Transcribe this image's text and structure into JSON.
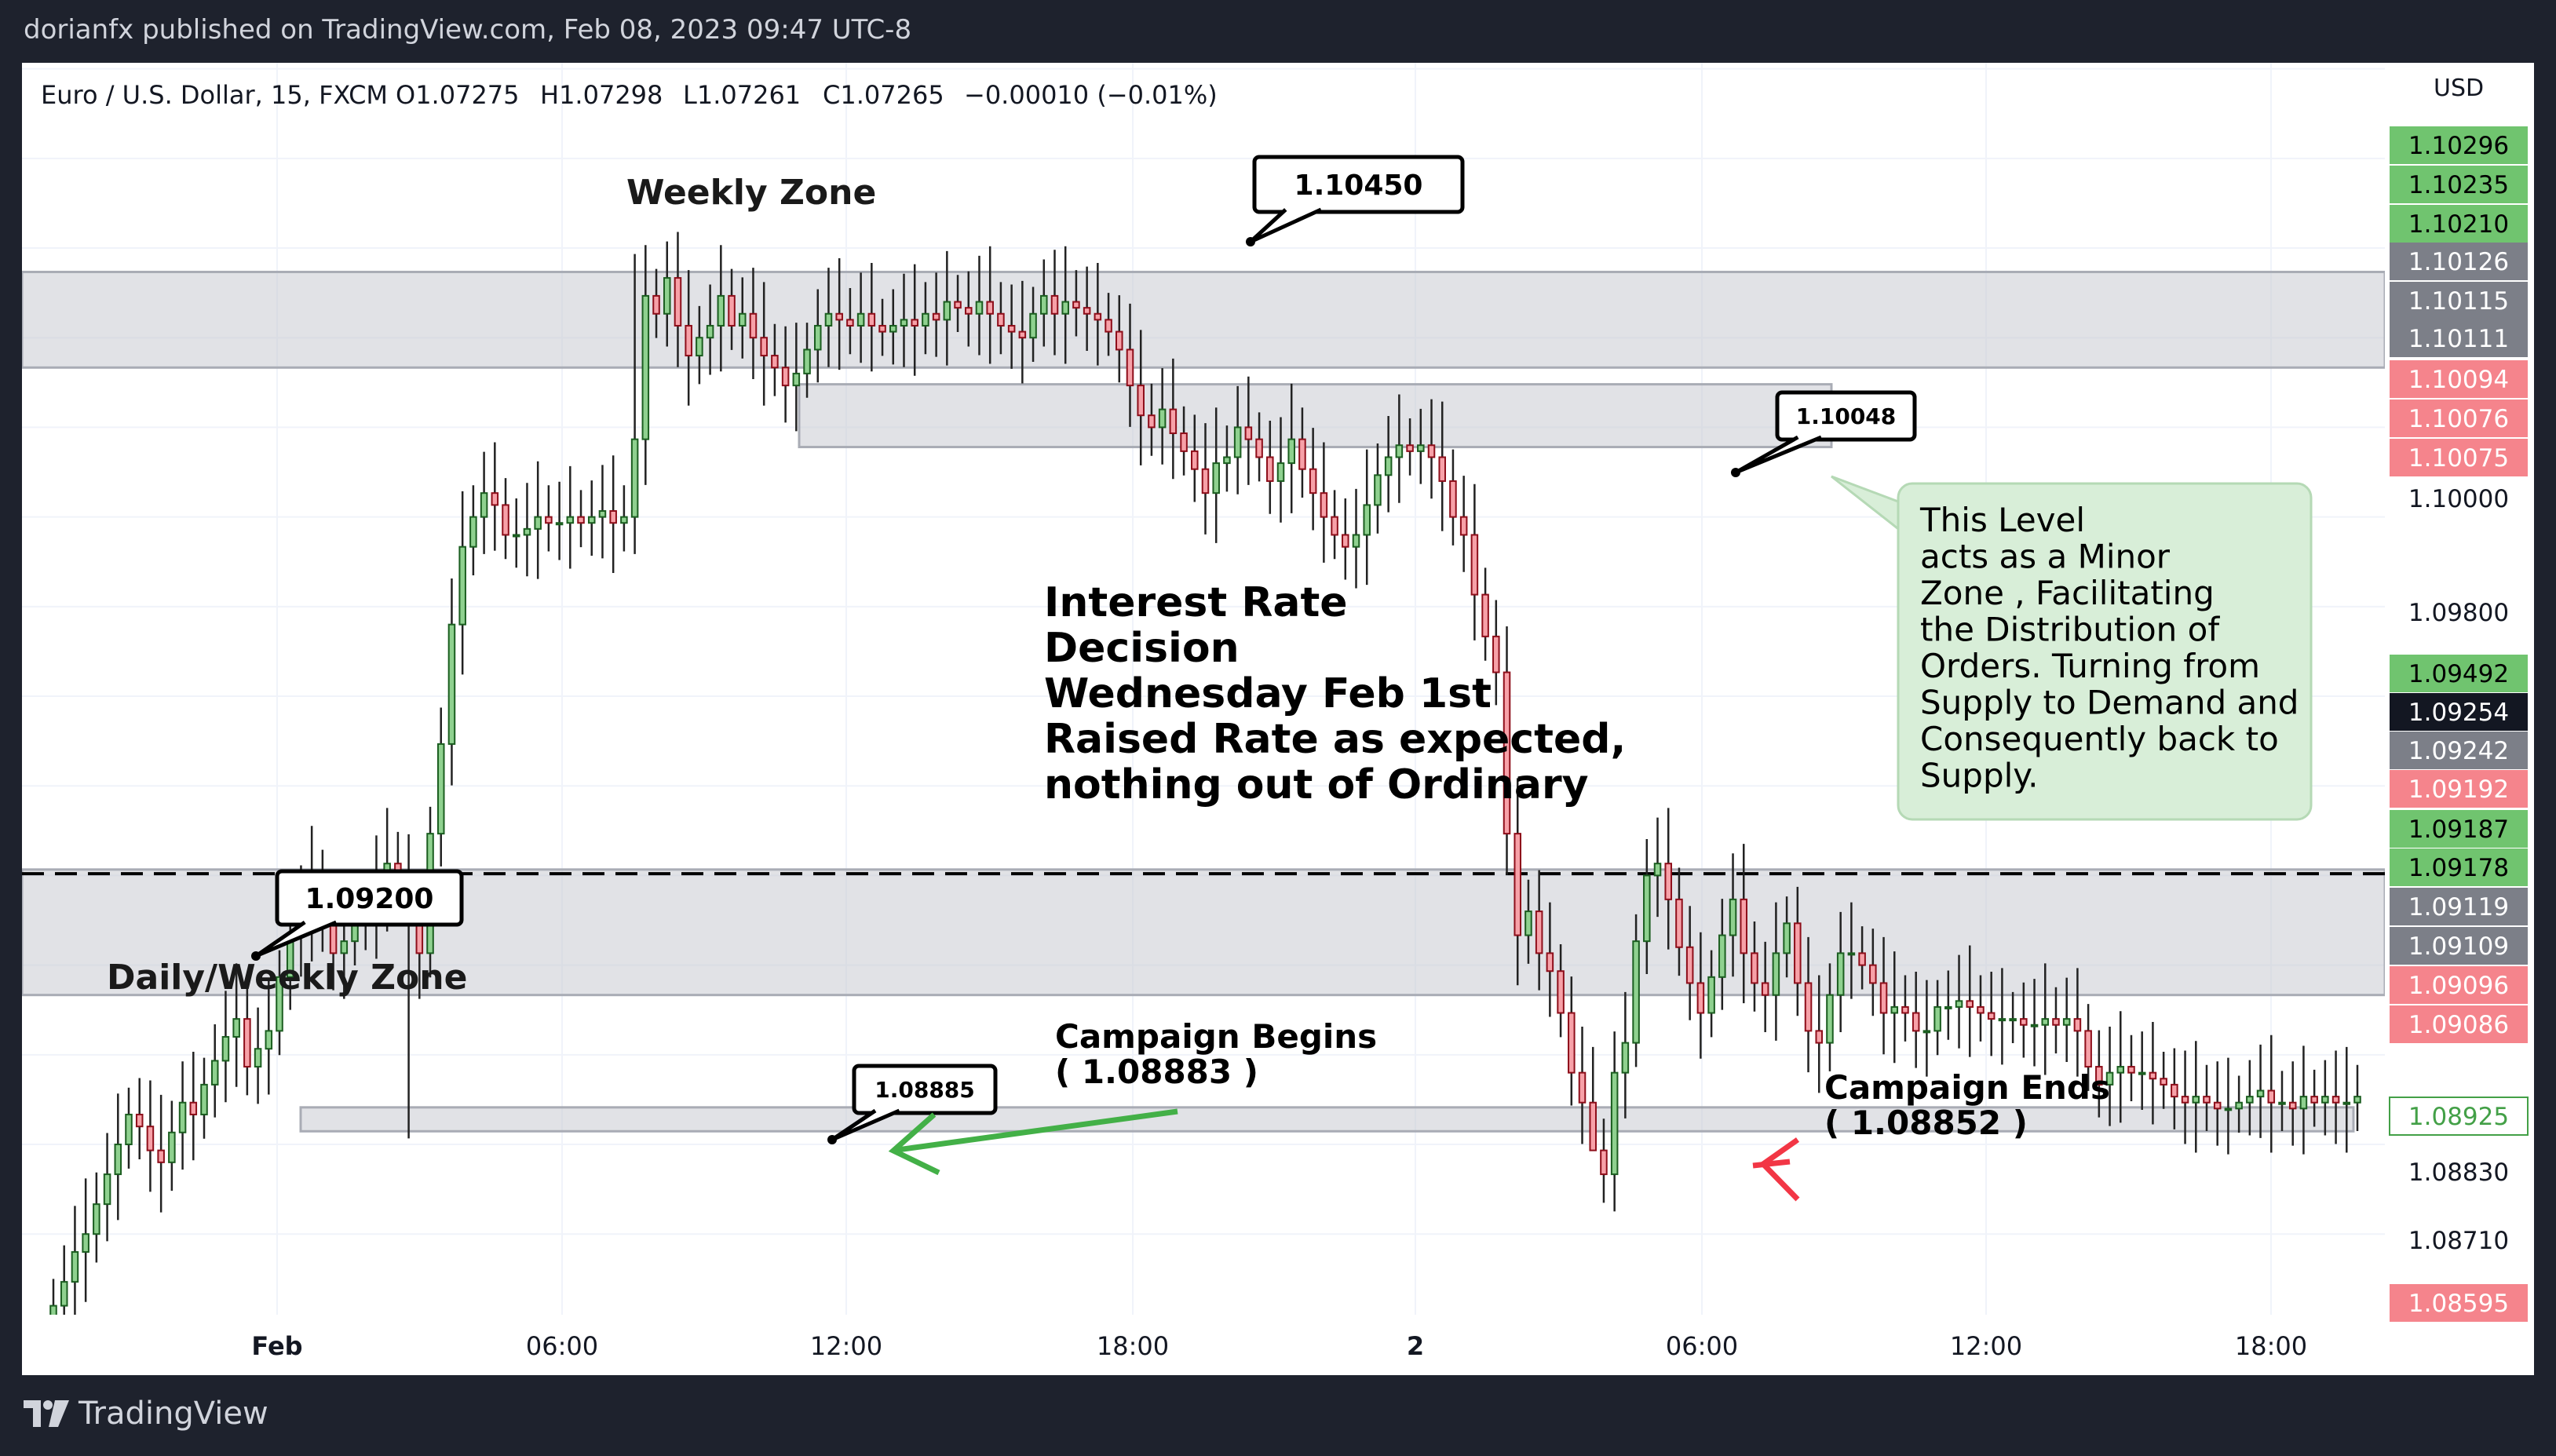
{
  "page": {
    "published": "dorianfx published on TradingView.com, Feb 08, 2023 09:47 UTC-8",
    "brand": "TradingView"
  },
  "chart_data": {
    "type": "candlestick",
    "title": "Euro / U.S. Dollar, 15, FXCM",
    "ohlc_legend": {
      "open": "O1.07275",
      "high": "H1.07298",
      "low": "L1.07261",
      "close": "C1.07265",
      "change": "−0.00010 (−0.01%)"
    },
    "currency_label": "USD",
    "ylim": [
      1.08545,
      1.1064
    ],
    "y_ticks": [
      "1.10000",
      "1.09800",
      "1.08830",
      "1.08710"
    ],
    "x_ticks": [
      "Feb",
      "06:00",
      "12:00",
      "18:00",
      "2",
      "06:00",
      "12:00",
      "18:00"
    ],
    "price_badges": [
      {
        "label": "1.10296",
        "kind": "green"
      },
      {
        "label": "1.10235",
        "kind": "green"
      },
      {
        "label": "1.10210",
        "kind": "green"
      },
      {
        "label": "1.10126",
        "kind": "gray"
      },
      {
        "label": "1.10115",
        "kind": "gray"
      },
      {
        "label": "1.10111",
        "kind": "gray"
      },
      {
        "label": "1.10094",
        "kind": "red"
      },
      {
        "label": "1.10076",
        "kind": "red"
      },
      {
        "label": "1.10075",
        "kind": "red"
      },
      {
        "label": "1.09492",
        "kind": "green"
      },
      {
        "label": "1.09254",
        "kind": "black"
      },
      {
        "label": "1.09242",
        "kind": "gray"
      },
      {
        "label": "1.09192",
        "kind": "red"
      },
      {
        "label": "1.09187",
        "kind": "green"
      },
      {
        "label": "1.09178",
        "kind": "green"
      },
      {
        "label": "1.09119",
        "kind": "gray"
      },
      {
        "label": "1.09109",
        "kind": "gray"
      },
      {
        "label": "1.09096",
        "kind": "red"
      },
      {
        "label": "1.09086",
        "kind": "red"
      },
      {
        "label": "1.08925",
        "kind": "outline"
      },
      {
        "label": "1.08595",
        "kind": "red"
      }
    ],
    "zones": [
      {
        "name": "Weekly Zone",
        "from": 1.1013,
        "to": 1.1029
      },
      {
        "name": "Minor Zone",
        "from": 1.09997,
        "to": 1.10102
      },
      {
        "name": "Daily/Weekly Zone",
        "from": 1.0908,
        "to": 1.0929
      },
      {
        "name": "Campaign Zone",
        "from": 1.08852,
        "to": 1.08892
      }
    ],
    "dashed_level": 1.09283,
    "annotations": {
      "weekly_zone": "Weekly Zone",
      "daily_weekly_zone": "Daily/Weekly Zone",
      "callout_top": "1.10450",
      "callout_minor": "1.10048",
      "callout_daily": "1.09200",
      "callout_campaign": "1.08885",
      "interest_rate": [
        "Interest Rate",
        "Decision",
        "Wednesday Feb 1st",
        "Raised Rate as expected,",
        "nothing out of Ordinary"
      ],
      "note_box": [
        "This Level",
        "acts as a Minor",
        "Zone , Facilitating",
        "the Distribution of",
        "Orders. Turning from",
        "Supply to Demand and",
        "Consequently back to",
        "Supply."
      ],
      "campaign_begins": [
        "Campaign Begins",
        "( 1.08883 )"
      ],
      "campaign_ends": [
        "Campaign Ends",
        "( 1.08852 )"
      ]
    },
    "close_path": [
      1.0856,
      1.086,
      1.0865,
      1.0868,
      1.0873,
      1.0878,
      1.0883,
      1.0888,
      1.0886,
      1.0882,
      1.088,
      1.0885,
      1.089,
      1.0888,
      1.0893,
      1.0897,
      1.0901,
      1.0904,
      1.0896,
      1.0899,
      1.0902,
      1.0911,
      1.0918,
      1.0922,
      1.0927,
      1.092,
      1.0915,
      1.0917,
      1.0922,
      1.0921,
      1.0927,
      1.093,
      1.0928,
      1.092,
      1.0915,
      1.0935,
      1.095,
      1.097,
      1.0983,
      1.0988,
      1.0992,
      1.099,
      1.0985,
      1.0985,
      1.0986,
      1.0988,
      1.0987,
      1.0987,
      1.0988,
      1.0987,
      1.0988,
      1.0989,
      1.0987,
      1.0988,
      1.1001,
      1.1025,
      1.1022,
      1.1028,
      1.102,
      1.1015,
      1.1018,
      1.102,
      1.1025,
      1.102,
      1.1022,
      1.1018,
      1.1015,
      1.1013,
      1.101,
      1.1012,
      1.1016,
      1.102,
      1.1022,
      1.1021,
      1.102,
      1.1022,
      1.102,
      1.1019,
      1.102,
      1.1021,
      1.102,
      1.1022,
      1.1021,
      1.1024,
      1.1023,
      1.1022,
      1.1024,
      1.1022,
      1.102,
      1.1019,
      1.1018,
      1.1022,
      1.1025,
      1.1022,
      1.1024,
      1.1023,
      1.1022,
      1.1021,
      1.1019,
      1.1016,
      1.101,
      1.1005,
      1.1003,
      1.1006,
      1.1002,
      1.0999,
      1.0996,
      1.0992,
      1.0997,
      1.0998,
      1.1003,
      1.1001,
      1.0998,
      1.0994,
      1.0997,
      1.1001,
      1.0996,
      1.0992,
      1.0988,
      1.0985,
      1.0983,
      1.0985,
      1.099,
      1.0995,
      1.0998,
      1.1,
      1.0999,
      1.1,
      1.0998,
      1.0994,
      1.0988,
      1.0985,
      1.0975,
      1.0968,
      1.0962,
      1.0935,
      1.0918,
      1.0922,
      1.0915,
      1.0912,
      1.0905,
      1.0895,
      1.089,
      1.0882,
      1.0878,
      1.0895,
      1.09,
      1.0917,
      1.0928,
      1.093,
      1.0924,
      1.0916,
      1.091,
      1.0905,
      1.0911,
      1.0918,
      1.0924,
      1.0915,
      1.091,
      1.0908,
      1.0915,
      1.092,
      1.091,
      1.0902,
      1.09,
      1.0908,
      1.0915,
      1.0915,
      1.0913,
      1.091,
      1.0905,
      1.0906,
      1.0905,
      1.0902,
      1.0902,
      1.0906,
      1.0906,
      1.0907,
      1.0906,
      1.0905,
      1.0904,
      1.0904,
      1.0904,
      1.0903,
      1.0903,
      1.0904,
      1.0903,
      1.0904,
      1.0902,
      1.0896,
      1.0893,
      1.0895,
      1.0896,
      1.0895,
      1.0895,
      1.0894,
      1.0893,
      1.0891,
      1.089,
      1.0891,
      1.089,
      1.0889,
      1.0889,
      1.089,
      1.0891,
      1.0892,
      1.089,
      1.089,
      1.0889,
      1.0891,
      1.089,
      1.0891,
      1.089,
      1.089,
      1.0891
    ]
  }
}
